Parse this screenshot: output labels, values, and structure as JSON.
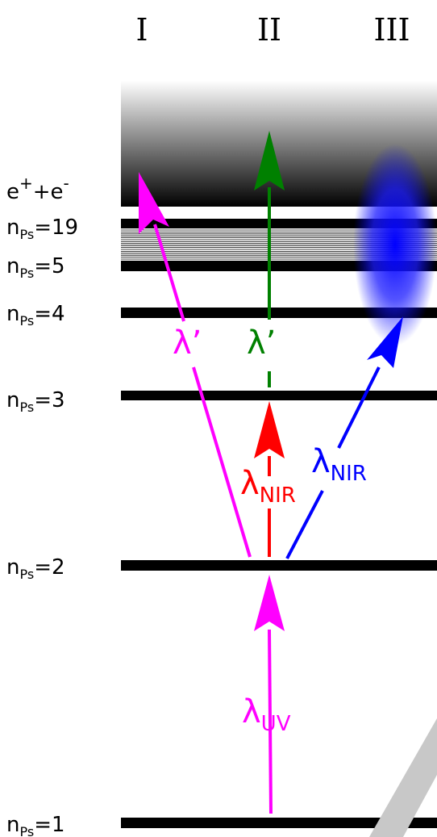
{
  "columns": [
    "I",
    "II",
    "III"
  ],
  "levels": [
    {
      "id": "continuum",
      "base": "e",
      "sup1": "+",
      "mid": "+e",
      "sup2": "-"
    },
    {
      "id": "n19",
      "base": "n",
      "sub": "Ps",
      "tail": "=19"
    },
    {
      "id": "n5",
      "base": "n",
      "sub": "Ps",
      "tail": "=5"
    },
    {
      "id": "n4",
      "base": "n",
      "sub": "Ps",
      "tail": "=4"
    },
    {
      "id": "n3",
      "base": "n",
      "sub": "Ps",
      "tail": "=3"
    },
    {
      "id": "n2",
      "base": "n",
      "sub": "Ps",
      "tail": "=2"
    },
    {
      "id": "n1",
      "base": "n",
      "sub": "Ps",
      "tail": "=1"
    }
  ],
  "transitions": {
    "uv": {
      "symbol": "λ",
      "sub": "UV",
      "color": "#ff00ff"
    },
    "nir_red": {
      "symbol": "λ",
      "sub": "NIR",
      "color": "#ff0000"
    },
    "nir_blue": {
      "symbol": "λ",
      "sub": "NIR",
      "color": "#0000ff"
    },
    "prime_magenta": {
      "symbol": "λ’",
      "color": "#ff00ff"
    },
    "prime_green": {
      "symbol": "λ’",
      "color": "#008000"
    }
  },
  "colors": {
    "magenta": "#ff00ff",
    "red": "#ff0000",
    "blue": "#0000ff",
    "green": "#008000",
    "level": "#000000"
  }
}
